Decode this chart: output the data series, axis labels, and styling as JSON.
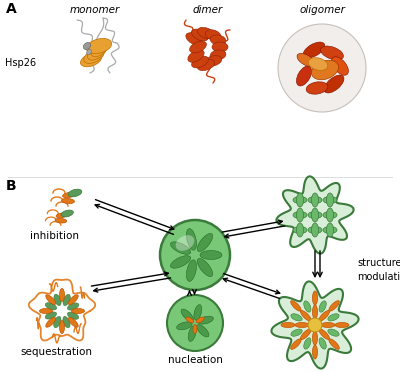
{
  "panel_A_label": "A",
  "panel_B_label": "B",
  "monomer_label": "monomer",
  "dimer_label": "dimer",
  "oligomer_label": "oligomer",
  "hsp26_label": "Hsp26",
  "inhibition_label": "inhibition",
  "sequestration_label": "sequestration",
  "nucleation_label": "nucleation",
  "structure_modulation_label": "structure\nmodulation",
  "color_green_dark": "#3a7a3a",
  "color_green_mid": "#6ab86a",
  "color_green_light": "#8cc88c",
  "color_green_pale": "#cce8cc",
  "color_green_condensate": "#78c078",
  "color_orange": "#e07818",
  "color_orange_dark": "#c05000",
  "color_yellow": "#e8c040",
  "color_gray_light": "#c8c8c8",
  "color_gray_dark": "#888888",
  "color_red": "#c03010",
  "color_red_orange": "#d04000",
  "color_peach": "#f0d0a0",
  "bg": "#ffffff"
}
